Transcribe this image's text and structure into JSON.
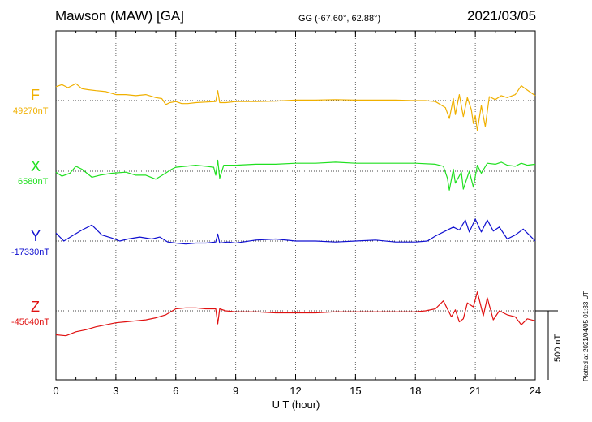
{
  "header": {
    "station": "Mawson (MAW)  [GA]",
    "coords": "GG (-67.60°,  62.88°)",
    "date": "2021/03/05"
  },
  "plotted_note": "Plotted at 2021/04/05 01:33 UT",
  "colors": {
    "F": "#f0b000",
    "X": "#20e020",
    "Y": "#1010d0",
    "Z": "#e01010"
  },
  "chart_data": {
    "type": "line",
    "title": "Mawson (MAW)  [GA]",
    "xlabel": "U T (hour)",
    "xlim": [
      0,
      24
    ],
    "xticks": [
      0,
      3,
      6,
      9,
      12,
      15,
      18,
      21,
      24
    ],
    "tick_labels": [
      "0",
      "3",
      "6",
      "9",
      "12",
      "15",
      "18",
      "21",
      "24"
    ],
    "units_per_full_plot_height": 3500,
    "scale_bar_nT": 500,
    "scale_label": "500 nT",
    "grid": true,
    "series": [
      {
        "key": "F",
        "name": "F",
        "baseline_label": "49270nT",
        "baseline_nT": 49270,
        "points": [
          [
            0,
            49410
          ],
          [
            0.3,
            49430
          ],
          [
            0.6,
            49400
          ],
          [
            1,
            49440
          ],
          [
            1.3,
            49390
          ],
          [
            1.6,
            49380
          ],
          [
            2,
            49370
          ],
          [
            2.5,
            49360
          ],
          [
            3,
            49330
          ],
          [
            3.5,
            49330
          ],
          [
            4,
            49320
          ],
          [
            4.5,
            49330
          ],
          [
            5,
            49300
          ],
          [
            5.3,
            49290
          ],
          [
            5.5,
            49230
          ],
          [
            5.7,
            49250
          ],
          [
            6,
            49260
          ],
          [
            6.3,
            49240
          ],
          [
            6.6,
            49240
          ],
          [
            7,
            49250
          ],
          [
            7.5,
            49255
          ],
          [
            8,
            49260
          ],
          [
            8.1,
            49370
          ],
          [
            8.2,
            49250
          ],
          [
            8.5,
            49250
          ],
          [
            9,
            49260
          ],
          [
            10,
            49260
          ],
          [
            11,
            49265
          ],
          [
            12,
            49275
          ],
          [
            13,
            49275
          ],
          [
            14,
            49280
          ],
          [
            15,
            49275
          ],
          [
            16,
            49275
          ],
          [
            17,
            49275
          ],
          [
            18,
            49270
          ],
          [
            18.5,
            49270
          ],
          [
            19,
            49260
          ],
          [
            19.5,
            49200
          ],
          [
            19.7,
            49090
          ],
          [
            19.9,
            49290
          ],
          [
            20,
            49130
          ],
          [
            20.2,
            49330
          ],
          [
            20.4,
            49110
          ],
          [
            20.6,
            49300
          ],
          [
            20.8,
            49180
          ],
          [
            20.9,
            49040
          ],
          [
            21,
            49120
          ],
          [
            21.1,
            48970
          ],
          [
            21.3,
            49220
          ],
          [
            21.5,
            49010
          ],
          [
            21.7,
            49310
          ],
          [
            22,
            49280
          ],
          [
            22.3,
            49320
          ],
          [
            22.6,
            49300
          ],
          [
            23,
            49330
          ],
          [
            23.3,
            49420
          ],
          [
            23.5,
            49390
          ],
          [
            24,
            49320
          ]
        ]
      },
      {
        "key": "X",
        "name": "X",
        "baseline_label": "6580nT",
        "baseline_nT": 6580,
        "points": [
          [
            0,
            6570
          ],
          [
            0.3,
            6530
          ],
          [
            0.7,
            6560
          ],
          [
            1,
            6630
          ],
          [
            1.3,
            6600
          ],
          [
            1.8,
            6520
          ],
          [
            2.2,
            6540
          ],
          [
            2.8,
            6560
          ],
          [
            3.5,
            6570
          ],
          [
            4,
            6540
          ],
          [
            4.5,
            6540
          ],
          [
            5,
            6500
          ],
          [
            5.4,
            6550
          ],
          [
            5.8,
            6600
          ],
          [
            6,
            6620
          ],
          [
            6.5,
            6630
          ],
          [
            7,
            6640
          ],
          [
            7.5,
            6630
          ],
          [
            7.9,
            6620
          ],
          [
            8,
            6540
          ],
          [
            8.1,
            6690
          ],
          [
            8.2,
            6510
          ],
          [
            8.4,
            6640
          ],
          [
            9,
            6640
          ],
          [
            10,
            6650
          ],
          [
            11,
            6650
          ],
          [
            12,
            6660
          ],
          [
            13,
            6660
          ],
          [
            14,
            6670
          ],
          [
            15,
            6660
          ],
          [
            16,
            6660
          ],
          [
            17,
            6660
          ],
          [
            18,
            6660
          ],
          [
            19,
            6650
          ],
          [
            19.4,
            6630
          ],
          [
            19.6,
            6510
          ],
          [
            19.7,
            6390
          ],
          [
            19.9,
            6600
          ],
          [
            20,
            6460
          ],
          [
            20.3,
            6570
          ],
          [
            20.4,
            6400
          ],
          [
            20.7,
            6580
          ],
          [
            20.9,
            6420
          ],
          [
            21.1,
            6640
          ],
          [
            21.3,
            6560
          ],
          [
            21.6,
            6660
          ],
          [
            22,
            6650
          ],
          [
            22.3,
            6670
          ],
          [
            22.6,
            6640
          ],
          [
            23,
            6630
          ],
          [
            23.3,
            6660
          ],
          [
            23.6,
            6640
          ],
          [
            24,
            6650
          ]
        ]
      },
      {
        "key": "Y",
        "name": "Y",
        "baseline_label": "-17330nT",
        "baseline_nT": -17330,
        "points": [
          [
            0,
            -17250
          ],
          [
            0.4,
            -17330
          ],
          [
            0.8,
            -17280
          ],
          [
            1.3,
            -17220
          ],
          [
            1.8,
            -17170
          ],
          [
            2.3,
            -17270
          ],
          [
            2.8,
            -17300
          ],
          [
            3.2,
            -17330
          ],
          [
            3.6,
            -17310
          ],
          [
            4.2,
            -17290
          ],
          [
            4.8,
            -17310
          ],
          [
            5.2,
            -17290
          ],
          [
            5.6,
            -17340
          ],
          [
            6,
            -17350
          ],
          [
            6.5,
            -17360
          ],
          [
            7,
            -17350
          ],
          [
            7.5,
            -17350
          ],
          [
            8,
            -17340
          ],
          [
            8.1,
            -17260
          ],
          [
            8.2,
            -17350
          ],
          [
            8.6,
            -17340
          ],
          [
            9,
            -17350
          ],
          [
            10,
            -17320
          ],
          [
            11,
            -17310
          ],
          [
            12,
            -17330
          ],
          [
            13,
            -17330
          ],
          [
            14,
            -17340
          ],
          [
            15,
            -17330
          ],
          [
            16,
            -17320
          ],
          [
            17,
            -17340
          ],
          [
            18,
            -17340
          ],
          [
            18.6,
            -17330
          ],
          [
            19,
            -17280
          ],
          [
            19.5,
            -17230
          ],
          [
            19.9,
            -17190
          ],
          [
            20.2,
            -17220
          ],
          [
            20.5,
            -17120
          ],
          [
            20.7,
            -17240
          ],
          [
            21,
            -17110
          ],
          [
            21.3,
            -17240
          ],
          [
            21.6,
            -17120
          ],
          [
            21.9,
            -17230
          ],
          [
            22.2,
            -17190
          ],
          [
            22.6,
            -17310
          ],
          [
            23,
            -17270
          ],
          [
            23.4,
            -17210
          ],
          [
            23.8,
            -17290
          ],
          [
            24,
            -17330
          ]
        ]
      },
      {
        "key": "Z",
        "name": "Z",
        "baseline_label": "-45640nT",
        "baseline_nT": -45640,
        "points": [
          [
            0,
            -45880
          ],
          [
            0.5,
            -45890
          ],
          [
            1,
            -45850
          ],
          [
            1.5,
            -45830
          ],
          [
            2,
            -45800
          ],
          [
            2.5,
            -45780
          ],
          [
            3,
            -45760
          ],
          [
            3.5,
            -45750
          ],
          [
            4,
            -45740
          ],
          [
            4.5,
            -45730
          ],
          [
            5,
            -45710
          ],
          [
            5.5,
            -45680
          ],
          [
            6,
            -45620
          ],
          [
            6.5,
            -45610
          ],
          [
            7,
            -45610
          ],
          [
            7.5,
            -45620
          ],
          [
            8,
            -45620
          ],
          [
            8.1,
            -45770
          ],
          [
            8.2,
            -45620
          ],
          [
            8.5,
            -45640
          ],
          [
            9,
            -45650
          ],
          [
            10,
            -45650
          ],
          [
            11,
            -45660
          ],
          [
            12,
            -45660
          ],
          [
            13,
            -45660
          ],
          [
            14,
            -45650
          ],
          [
            15,
            -45650
          ],
          [
            16,
            -45650
          ],
          [
            17,
            -45650
          ],
          [
            18,
            -45650
          ],
          [
            18.5,
            -45640
          ],
          [
            19,
            -45620
          ],
          [
            19.4,
            -45540
          ],
          [
            19.8,
            -45700
          ],
          [
            20,
            -45630
          ],
          [
            20.2,
            -45750
          ],
          [
            20.4,
            -45720
          ],
          [
            20.6,
            -45560
          ],
          [
            20.9,
            -45600
          ],
          [
            21.1,
            -45450
          ],
          [
            21.4,
            -45690
          ],
          [
            21.6,
            -45510
          ],
          [
            21.9,
            -45730
          ],
          [
            22.2,
            -45640
          ],
          [
            22.6,
            -45680
          ],
          [
            23,
            -45700
          ],
          [
            23.3,
            -45780
          ],
          [
            23.6,
            -45720
          ],
          [
            24,
            -45740
          ]
        ]
      }
    ]
  }
}
